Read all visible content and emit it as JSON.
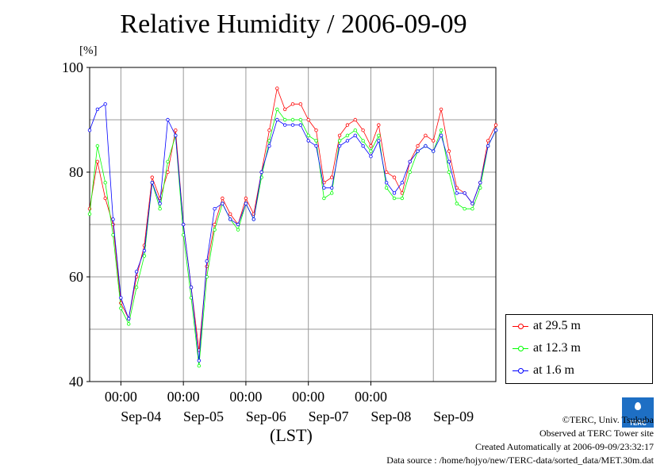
{
  "colors": {
    "red": "#ff0000",
    "green": "#00ff00",
    "blue": "#0000ff",
    "grid": "#999999"
  },
  "footer": {
    "copyright": "©TERC, Univ. Tsukuba",
    "observed": "Observed at TERC Tower site",
    "created": "Created Automatically at 2006-09-09/23:32:17",
    "source": "Data source : /home/hojyo/new/TERC-data/sorted_data/MET.30m.dat"
  },
  "logo": {
    "text": "TERC"
  },
  "chart_data": {
    "type": "line",
    "title": "Relative Humidity / 2006-09-09",
    "ylabel": "[%]",
    "xlabel": "(LST)",
    "ylim": [
      40,
      100
    ],
    "yticks": [
      40,
      60,
      80,
      100
    ],
    "xlim": [
      "2006-09-03 12:00",
      "2006-09-10 00:00"
    ],
    "xtick_time_labels": [
      "00:00",
      "00:00",
      "00:00",
      "00:00",
      "00:00"
    ],
    "xtick_date_labels": [
      "Sep-04",
      "Sep-05",
      "Sep-06",
      "Sep-07",
      "Sep-08",
      "Sep-09"
    ],
    "grid": true,
    "legend_position": "right",
    "x_hours_since_2006-09-03_12:00": [
      0,
      3,
      6,
      9,
      12,
      15,
      18,
      21,
      24,
      27,
      30,
      33,
      36,
      39,
      42,
      45,
      48,
      51,
      54,
      57,
      60,
      63,
      66,
      69,
      72,
      75,
      78,
      81,
      84,
      87,
      90,
      93,
      96,
      99,
      102,
      105,
      108,
      111,
      114,
      117,
      120,
      123,
      126,
      129,
      132,
      135,
      138,
      141,
      144,
      147,
      150,
      153,
      156
    ],
    "series": [
      {
        "name": "at 29.5 m",
        "color": "#ff0000",
        "values": [
          73,
          82,
          75,
          70,
          55,
          52,
          60,
          66,
          79,
          75,
          80,
          88,
          70,
          58,
          46,
          62,
          70,
          75,
          72,
          70,
          75,
          72,
          80,
          88,
          96,
          92,
          93,
          93,
          90,
          88,
          78,
          79,
          87,
          89,
          90,
          88,
          85,
          89,
          80,
          79,
          76,
          82,
          85,
          87,
          86,
          92,
          84,
          77,
          76,
          74,
          78,
          86,
          89
        ]
      },
      {
        "name": "at 12.3 m",
        "color": "#00ff00",
        "values": [
          72,
          85,
          78,
          68,
          54,
          51,
          58,
          64,
          78,
          73,
          82,
          87,
          68,
          56,
          43,
          60,
          69,
          74,
          71,
          69,
          74,
          71,
          79,
          86,
          92,
          90,
          90,
          90,
          87,
          86,
          75,
          76,
          86,
          87,
          88,
          86,
          84,
          87,
          77,
          75,
          75,
          80,
          84,
          85,
          84,
          88,
          80,
          74,
          73,
          73,
          77,
          85,
          88
        ]
      },
      {
        "name": "at 1.6 m",
        "color": "#0000ff",
        "values": [
          88,
          92,
          93,
          71,
          56,
          52,
          61,
          65,
          78,
          74,
          90,
          87,
          70,
          58,
          44,
          63,
          73,
          74,
          71,
          70,
          74,
          71,
          80,
          85,
          90,
          89,
          89,
          89,
          86,
          85,
          77,
          77,
          85,
          86,
          87,
          85,
          83,
          86,
          78,
          76,
          78,
          82,
          84,
          85,
          84,
          87,
          82,
          76,
          76,
          74,
          78,
          85,
          88
        ]
      }
    ]
  }
}
